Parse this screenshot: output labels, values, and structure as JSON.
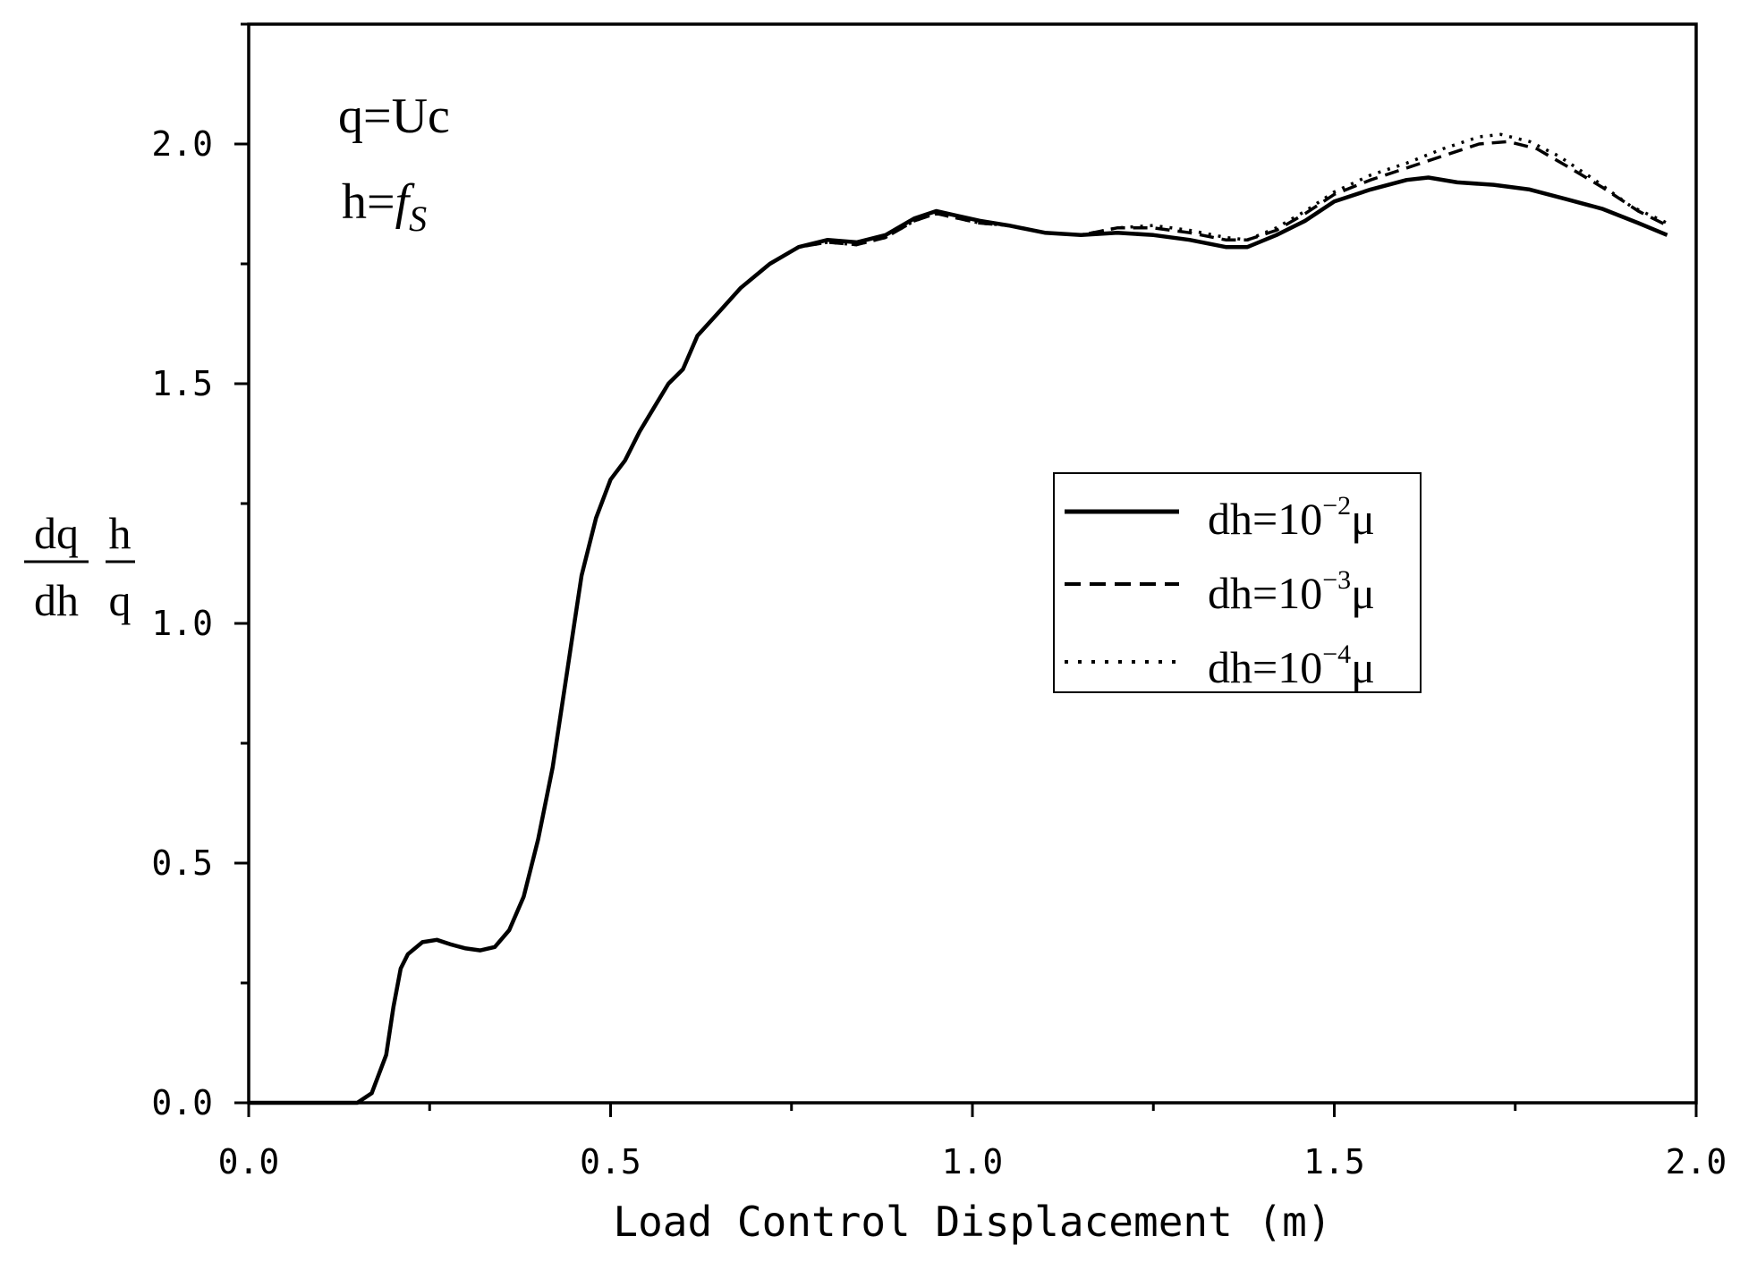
{
  "chart_data": {
    "type": "line",
    "xlabel": "Load Control Displacement (m)",
    "ylabel": {
      "frac1_num": "dq",
      "frac1_den": "dh",
      "frac2_num": "h",
      "frac2_den": "q"
    },
    "xlim": [
      0.0,
      2.0
    ],
    "ylim": [
      0.0,
      2.25
    ],
    "x_ticks": [
      "0.0",
      "0.5",
      "1.0",
      "1.5",
      "2.0"
    ],
    "y_ticks": [
      "0.0",
      "0.5",
      "1.0",
      "1.5",
      "2.0"
    ],
    "grid": false,
    "legend_position": "right-middle",
    "annotations": {
      "line1": "q=Uc",
      "line2_prefix": "h=",
      "line2_f": "f",
      "line2_sub": "S"
    },
    "series": [
      {
        "name": "dh=10^-2 μ",
        "label_base": "dh=10",
        "label_exp": "−2",
        "label_unit": "μ",
        "style": "solid",
        "points": [
          [
            0.0,
            0.0
          ],
          [
            0.15,
            0.0
          ],
          [
            0.17,
            0.02
          ],
          [
            0.19,
            0.1
          ],
          [
            0.2,
            0.2
          ],
          [
            0.21,
            0.28
          ],
          [
            0.22,
            0.31
          ],
          [
            0.24,
            0.335
          ],
          [
            0.26,
            0.34
          ],
          [
            0.28,
            0.33
          ],
          [
            0.3,
            0.322
          ],
          [
            0.32,
            0.318
          ],
          [
            0.34,
            0.325
          ],
          [
            0.36,
            0.36
          ],
          [
            0.38,
            0.43
          ],
          [
            0.4,
            0.55
          ],
          [
            0.42,
            0.7
          ],
          [
            0.44,
            0.9
          ],
          [
            0.45,
            1.0
          ],
          [
            0.46,
            1.1
          ],
          [
            0.48,
            1.22
          ],
          [
            0.5,
            1.3
          ],
          [
            0.52,
            1.34
          ],
          [
            0.54,
            1.4
          ],
          [
            0.56,
            1.45
          ],
          [
            0.58,
            1.5
          ],
          [
            0.6,
            1.53
          ],
          [
            0.62,
            1.6
          ],
          [
            0.65,
            1.65
          ],
          [
            0.68,
            1.7
          ],
          [
            0.72,
            1.75
          ],
          [
            0.76,
            1.785
          ],
          [
            0.8,
            1.8
          ],
          [
            0.84,
            1.795
          ],
          [
            0.88,
            1.81
          ],
          [
            0.92,
            1.845
          ],
          [
            0.95,
            1.86
          ],
          [
            0.98,
            1.85
          ],
          [
            1.01,
            1.84
          ],
          [
            1.05,
            1.83
          ],
          [
            1.1,
            1.815
          ],
          [
            1.15,
            1.81
          ],
          [
            1.2,
            1.815
          ],
          [
            1.25,
            1.81
          ],
          [
            1.3,
            1.8
          ],
          [
            1.35,
            1.785
          ],
          [
            1.38,
            1.785
          ],
          [
            1.42,
            1.81
          ],
          [
            1.46,
            1.84
          ],
          [
            1.5,
            1.88
          ],
          [
            1.55,
            1.905
          ],
          [
            1.6,
            1.925
          ],
          [
            1.63,
            1.93
          ],
          [
            1.67,
            1.92
          ],
          [
            1.72,
            1.915
          ],
          [
            1.77,
            1.905
          ],
          [
            1.82,
            1.885
          ],
          [
            1.87,
            1.865
          ],
          [
            1.92,
            1.835
          ],
          [
            1.96,
            1.81
          ]
        ]
      },
      {
        "name": "dh=10^-3 μ",
        "label_base": "dh=10",
        "label_exp": "−3",
        "label_unit": "μ",
        "style": "dash",
        "points": [
          [
            0.0,
            0.0
          ],
          [
            0.15,
            0.0
          ],
          [
            0.17,
            0.02
          ],
          [
            0.19,
            0.1
          ],
          [
            0.2,
            0.2
          ],
          [
            0.21,
            0.28
          ],
          [
            0.22,
            0.31
          ],
          [
            0.24,
            0.335
          ],
          [
            0.26,
            0.34
          ],
          [
            0.28,
            0.33
          ],
          [
            0.3,
            0.322
          ],
          [
            0.32,
            0.318
          ],
          [
            0.34,
            0.325
          ],
          [
            0.36,
            0.36
          ],
          [
            0.38,
            0.43
          ],
          [
            0.4,
            0.55
          ],
          [
            0.42,
            0.7
          ],
          [
            0.44,
            0.9
          ],
          [
            0.45,
            1.0
          ],
          [
            0.46,
            1.1
          ],
          [
            0.48,
            1.22
          ],
          [
            0.5,
            1.3
          ],
          [
            0.52,
            1.34
          ],
          [
            0.54,
            1.4
          ],
          [
            0.56,
            1.45
          ],
          [
            0.58,
            1.5
          ],
          [
            0.6,
            1.53
          ],
          [
            0.62,
            1.6
          ],
          [
            0.65,
            1.65
          ],
          [
            0.68,
            1.7
          ],
          [
            0.72,
            1.75
          ],
          [
            0.76,
            1.785
          ],
          [
            0.8,
            1.795
          ],
          [
            0.84,
            1.79
          ],
          [
            0.88,
            1.805
          ],
          [
            0.92,
            1.84
          ],
          [
            0.95,
            1.855
          ],
          [
            0.98,
            1.845
          ],
          [
            1.01,
            1.835
          ],
          [
            1.05,
            1.83
          ],
          [
            1.1,
            1.815
          ],
          [
            1.15,
            1.81
          ],
          [
            1.2,
            1.825
          ],
          [
            1.25,
            1.825
          ],
          [
            1.3,
            1.815
          ],
          [
            1.35,
            1.8
          ],
          [
            1.38,
            1.8
          ],
          [
            1.42,
            1.82
          ],
          [
            1.46,
            1.855
          ],
          [
            1.5,
            1.895
          ],
          [
            1.55,
            1.925
          ],
          [
            1.6,
            1.95
          ],
          [
            1.65,
            1.975
          ],
          [
            1.7,
            2.0
          ],
          [
            1.74,
            2.005
          ],
          [
            1.78,
            1.99
          ],
          [
            1.82,
            1.955
          ],
          [
            1.87,
            1.91
          ],
          [
            1.92,
            1.86
          ],
          [
            1.96,
            1.83
          ]
        ]
      },
      {
        "name": "dh=10^-4 μ",
        "label_base": "dh=10",
        "label_exp": "−4",
        "label_unit": "μ",
        "style": "dot",
        "points": [
          [
            0.0,
            0.0
          ],
          [
            0.15,
            0.0
          ],
          [
            0.17,
            0.02
          ],
          [
            0.19,
            0.1
          ],
          [
            0.2,
            0.2
          ],
          [
            0.21,
            0.28
          ],
          [
            0.22,
            0.31
          ],
          [
            0.24,
            0.335
          ],
          [
            0.26,
            0.34
          ],
          [
            0.28,
            0.33
          ],
          [
            0.3,
            0.322
          ],
          [
            0.32,
            0.318
          ],
          [
            0.34,
            0.325
          ],
          [
            0.36,
            0.36
          ],
          [
            0.38,
            0.43
          ],
          [
            0.4,
            0.55
          ],
          [
            0.42,
            0.7
          ],
          [
            0.44,
            0.9
          ],
          [
            0.45,
            1.0
          ],
          [
            0.46,
            1.1
          ],
          [
            0.48,
            1.22
          ],
          [
            0.5,
            1.3
          ],
          [
            0.52,
            1.34
          ],
          [
            0.54,
            1.4
          ],
          [
            0.56,
            1.45
          ],
          [
            0.58,
            1.5
          ],
          [
            0.6,
            1.53
          ],
          [
            0.62,
            1.6
          ],
          [
            0.65,
            1.65
          ],
          [
            0.68,
            1.7
          ],
          [
            0.72,
            1.75
          ],
          [
            0.76,
            1.785
          ],
          [
            0.8,
            1.795
          ],
          [
            0.84,
            1.79
          ],
          [
            0.88,
            1.805
          ],
          [
            0.92,
            1.84
          ],
          [
            0.95,
            1.855
          ],
          [
            0.98,
            1.845
          ],
          [
            1.01,
            1.835
          ],
          [
            1.05,
            1.83
          ],
          [
            1.1,
            1.815
          ],
          [
            1.15,
            1.81
          ],
          [
            1.2,
            1.825
          ],
          [
            1.25,
            1.83
          ],
          [
            1.3,
            1.82
          ],
          [
            1.35,
            1.805
          ],
          [
            1.38,
            1.8
          ],
          [
            1.42,
            1.825
          ],
          [
            1.46,
            1.86
          ],
          [
            1.5,
            1.9
          ],
          [
            1.55,
            1.935
          ],
          [
            1.6,
            1.96
          ],
          [
            1.65,
            1.99
          ],
          [
            1.7,
            2.015
          ],
          [
            1.73,
            2.02
          ],
          [
            1.77,
            2.005
          ],
          [
            1.81,
            1.975
          ],
          [
            1.86,
            1.925
          ],
          [
            1.91,
            1.87
          ],
          [
            1.96,
            1.835
          ]
        ]
      }
    ]
  }
}
